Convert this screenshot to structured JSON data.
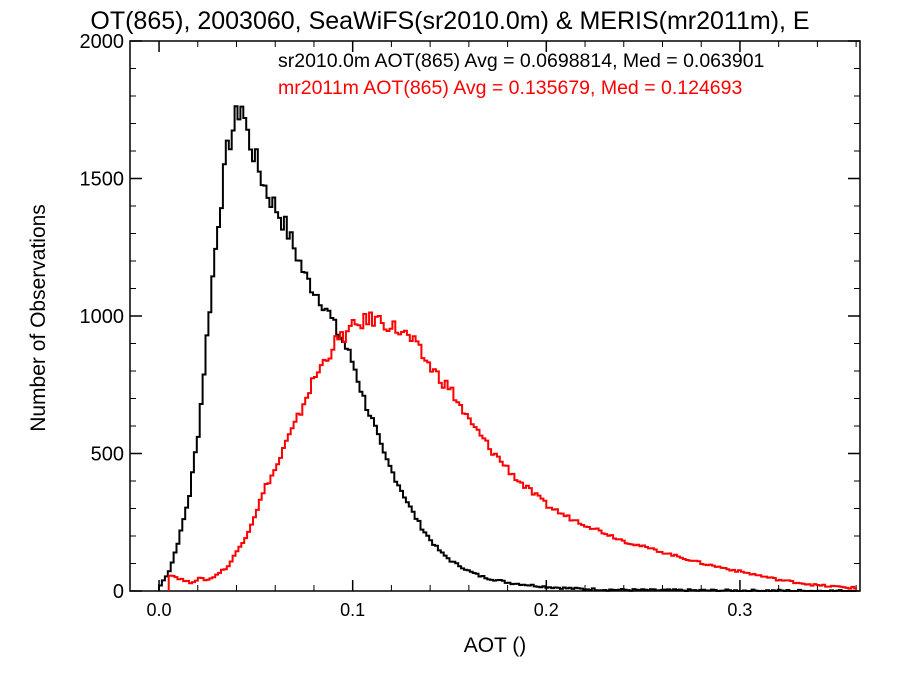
{
  "chart_data": {
    "type": "line",
    "title": "OT(865), 2003060, SeaWiFS(sr2010.0m) & MERIS(mr2011m), E",
    "xlabel": "AOT ()",
    "ylabel": "Number of Observations",
    "xlim": [
      -0.015,
      0.362
    ],
    "ylim": [
      0,
      2000
    ],
    "xticks": [
      0.0,
      0.1,
      0.2,
      0.3
    ],
    "xtick_labels": [
      "0.0",
      "0.1",
      "0.2",
      "0.3"
    ],
    "yticks": [
      0,
      500,
      1000,
      1500,
      2000
    ],
    "ytick_labels": [
      "0",
      "500",
      "1000",
      "1500",
      "2000"
    ],
    "grid": false,
    "legend": "top-right",
    "series": [
      {
        "name": "sr2010.0m AOT(865) Avg = 0.0698814, Med = 0.063901",
        "color": "#000000",
        "x": [
          0.0,
          0.005,
          0.01,
          0.015,
          0.02,
          0.025,
          0.03,
          0.035,
          0.04,
          0.042,
          0.045,
          0.05,
          0.055,
          0.06,
          0.065,
          0.07,
          0.075,
          0.08,
          0.085,
          0.09,
          0.095,
          0.1,
          0.105,
          0.11,
          0.115,
          0.12,
          0.125,
          0.13,
          0.135,
          0.14,
          0.145,
          0.15,
          0.155,
          0.16,
          0.165,
          0.17,
          0.175,
          0.18,
          0.19,
          0.2,
          0.21,
          0.22,
          0.23,
          0.25,
          0.28,
          0.32,
          0.36
        ],
        "y": [
          20,
          80,
          200,
          350,
          600,
          1000,
          1350,
          1620,
          1740,
          1770,
          1660,
          1550,
          1450,
          1390,
          1320,
          1230,
          1140,
          1090,
          1040,
          960,
          900,
          820,
          700,
          610,
          500,
          430,
          360,
          290,
          230,
          180,
          140,
          110,
          90,
          70,
          55,
          45,
          38,
          30,
          22,
          15,
          10,
          7,
          5,
          3,
          2,
          1,
          0
        ]
      },
      {
        "name": "mr2011m AOT(865) Avg = 0.135679, Med = 0.124693",
        "color": "#ff0000",
        "x": [
          0.005,
          0.01,
          0.015,
          0.02,
          0.025,
          0.03,
          0.035,
          0.04,
          0.045,
          0.05,
          0.055,
          0.06,
          0.065,
          0.07,
          0.075,
          0.08,
          0.085,
          0.09,
          0.095,
          0.1,
          0.105,
          0.11,
          0.115,
          0.12,
          0.125,
          0.13,
          0.135,
          0.14,
          0.145,
          0.15,
          0.155,
          0.16,
          0.165,
          0.17,
          0.175,
          0.18,
          0.185,
          0.19,
          0.195,
          0.2,
          0.21,
          0.22,
          0.23,
          0.24,
          0.25,
          0.26,
          0.27,
          0.28,
          0.29,
          0.3,
          0.31,
          0.32,
          0.33,
          0.34,
          0.35,
          0.36
        ],
        "y": [
          60,
          45,
          30,
          45,
          40,
          65,
          90,
          150,
          210,
          300,
          390,
          450,
          540,
          610,
          700,
          780,
          840,
          900,
          930,
          960,
          980,
          990,
          980,
          960,
          940,
          910,
          860,
          810,
          770,
          730,
          670,
          610,
          570,
          520,
          480,
          440,
          400,
          370,
          340,
          310,
          270,
          240,
          210,
          180,
          160,
          140,
          120,
          100,
          85,
          70,
          55,
          40,
          30,
          20,
          15,
          10
        ]
      }
    ]
  }
}
